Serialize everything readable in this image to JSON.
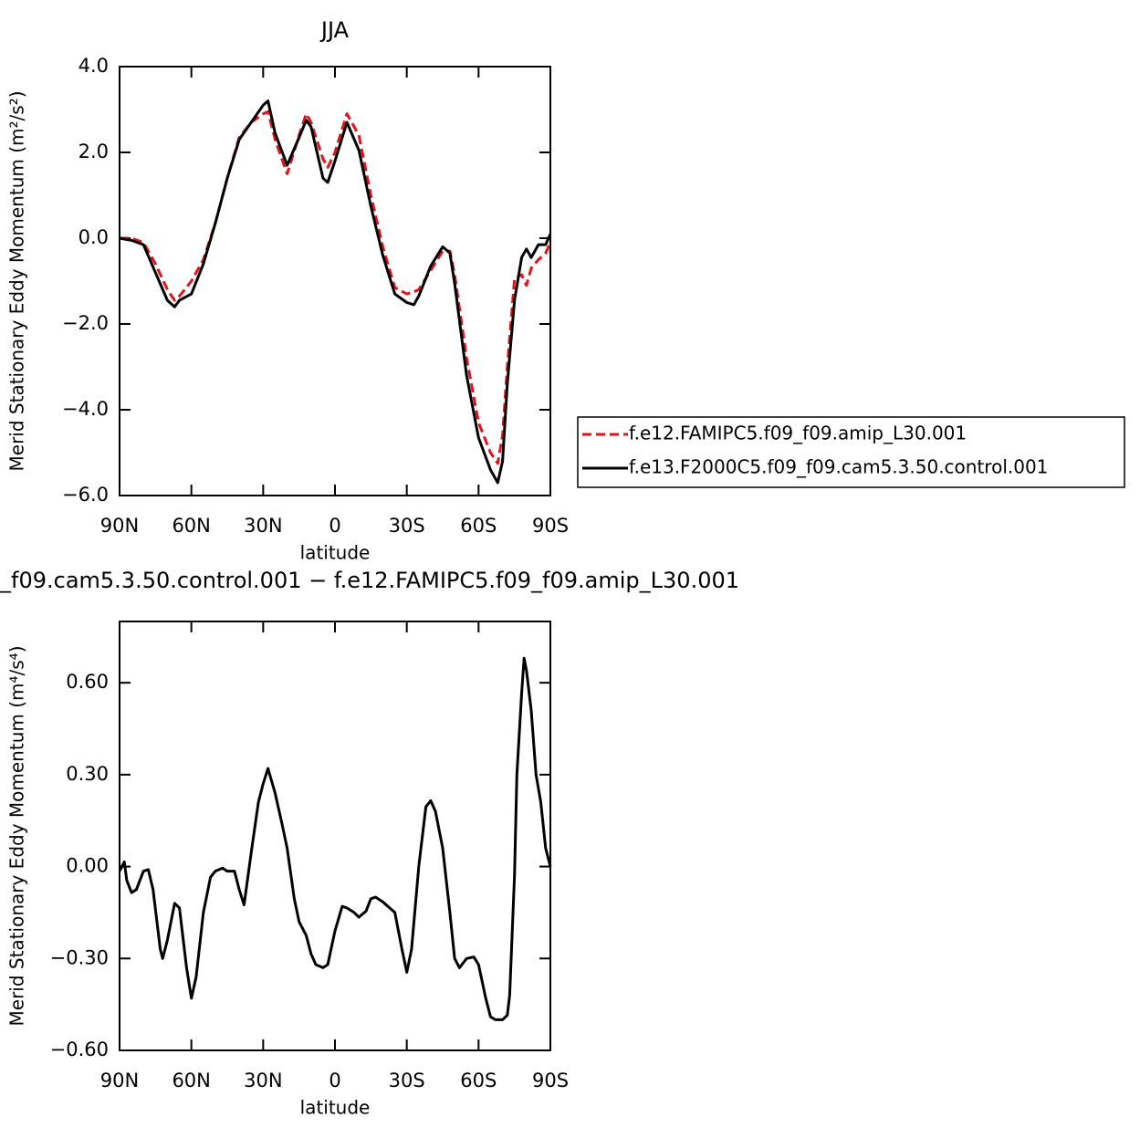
{
  "chart_data": [
    {
      "type": "line",
      "title": "JJA",
      "xlabel": "latitude",
      "ylabel": "Merid Stationary Eddy Momentum (m²/s²)",
      "x": [
        90,
        85,
        80,
        75,
        70,
        67,
        65,
        60,
        55,
        50,
        45,
        40,
        35,
        30,
        28,
        25,
        20,
        15,
        12,
        10,
        5,
        3,
        0,
        -5,
        -10,
        -15,
        -20,
        -25,
        -30,
        -33,
        -35,
        -40,
        -45,
        -48,
        -50,
        -55,
        -60,
        -65,
        -68,
        -70,
        -72,
        -75,
        -78,
        -80,
        -82,
        -85,
        -88,
        -90
      ],
      "series": [
        {
          "name": "f.e12.FAMIPC5.f09_f09.amip_L30.001",
          "color": "#e0141c",
          "style": "dashed",
          "values": [
            0,
            0,
            -0.1,
            -0.6,
            -1.2,
            -1.45,
            -1.35,
            -1.0,
            -0.5,
            0.35,
            1.4,
            2.35,
            2.7,
            2.9,
            2.95,
            2.3,
            1.5,
            2.4,
            2.9,
            2.7,
            1.85,
            1.65,
            2.0,
            2.9,
            2.4,
            1.0,
            -0.2,
            -1.15,
            -1.3,
            -1.25,
            -1.2,
            -0.75,
            -0.3,
            -0.3,
            -0.85,
            -2.8,
            -4.3,
            -5.0,
            -5.25,
            -4.6,
            -3.0,
            -0.95,
            -0.85,
            -1.1,
            -0.7,
            -0.5,
            -0.35,
            -0.1
          ]
        },
        {
          "name": "f.e13.F2000C5.f09_f09.cam5.3.50.control.001",
          "color": "#000000",
          "style": "solid",
          "values": [
            0,
            -0.05,
            -0.15,
            -0.8,
            -1.45,
            -1.6,
            -1.45,
            -1.3,
            -0.6,
            0.35,
            1.4,
            2.3,
            2.7,
            3.1,
            3.2,
            2.45,
            1.7,
            2.35,
            2.75,
            2.6,
            1.4,
            1.3,
            1.8,
            2.7,
            2.05,
            0.75,
            -0.4,
            -1.3,
            -1.5,
            -1.55,
            -1.35,
            -0.65,
            -0.2,
            -0.35,
            -1.05,
            -3.2,
            -4.65,
            -5.4,
            -5.7,
            -5.2,
            -3.4,
            -1.45,
            -0.45,
            -0.25,
            -0.45,
            -0.15,
            -0.15,
            0.1
          ]
        }
      ],
      "xlim": [
        90,
        -90
      ],
      "xticks": [
        {
          "value": 90,
          "label": "90N"
        },
        {
          "value": 60,
          "label": "60N"
        },
        {
          "value": 30,
          "label": "30N"
        },
        0,
        {
          "value": -30,
          "label": "30S"
        },
        {
          "value": -60,
          "label": "60S"
        },
        {
          "value": -90,
          "label": "90S"
        }
      ],
      "ylim": [
        -6,
        4
      ],
      "yticks": [
        {
          "value": -6,
          "label": "−6.0"
        },
        {
          "value": -4,
          "label": "−4.0"
        },
        {
          "value": -2,
          "label": "−2.0"
        },
        {
          "value": 0,
          "label": "0.0"
        },
        {
          "value": 2,
          "label": "2.0"
        },
        {
          "value": 4,
          "label": "4.0"
        }
      ],
      "legend": "outside right"
    },
    {
      "type": "line",
      "title": "_f09.cam5.3.50.control.001  −  f.e12.FAMIPC5.f09_f09.amip_L30.001",
      "xlabel": "latitude",
      "ylabel": "Merid Stationary Eddy Momentum (m⁴/s⁴)",
      "x": [
        90,
        88,
        87,
        85,
        83,
        80,
        78,
        76,
        73,
        72,
        70,
        67,
        65,
        62,
        60,
        58,
        55,
        52,
        50,
        47,
        45,
        42,
        40,
        38,
        35,
        32,
        30,
        28,
        25,
        22,
        20,
        17,
        15,
        12,
        10,
        8,
        5,
        3,
        0,
        -3,
        -5,
        -8,
        -10,
        -13,
        -15,
        -17,
        -20,
        -25,
        -28,
        -30,
        -32,
        -35,
        -38,
        -40,
        -42,
        -45,
        -48,
        -50,
        -52,
        -55,
        -58,
        -60,
        -63,
        -65,
        -67,
        -70,
        -72,
        -73,
        -75,
        -76,
        -78,
        -79,
        -80,
        -82,
        -84,
        -86,
        -88,
        -90
      ],
      "series": [
        {
          "color": "#000000",
          "style": "solid",
          "values": [
            -0.015,
            0.015,
            -0.045,
            -0.085,
            -0.075,
            -0.015,
            -0.01,
            -0.075,
            -0.27,
            -0.3,
            -0.24,
            -0.12,
            -0.135,
            -0.33,
            -0.43,
            -0.36,
            -0.15,
            -0.035,
            -0.015,
            -0.005,
            -0.015,
            -0.015,
            -0.075,
            -0.125,
            0.045,
            0.21,
            0.27,
            0.32,
            0.24,
            0.135,
            0.06,
            -0.105,
            -0.18,
            -0.225,
            -0.285,
            -0.32,
            -0.33,
            -0.32,
            -0.21,
            -0.13,
            -0.135,
            -0.15,
            -0.165,
            -0.145,
            -0.105,
            -0.1,
            -0.115,
            -0.15,
            -0.27,
            -0.345,
            -0.27,
            0,
            0.195,
            0.215,
            0.18,
            0.06,
            -0.15,
            -0.3,
            -0.33,
            -0.3,
            -0.295,
            -0.32,
            -0.43,
            -0.49,
            -0.5,
            -0.5,
            -0.485,
            -0.42,
            -0.03,
            0.3,
            0.565,
            0.68,
            0.64,
            0.51,
            0.3,
            0.21,
            0.06,
            0
          ]
        }
      ],
      "xlim": [
        90,
        -90
      ],
      "xticks": [
        {
          "value": 90,
          "label": "90N"
        },
        {
          "value": 60,
          "label": "60N"
        },
        {
          "value": 30,
          "label": "30N"
        },
        0,
        {
          "value": -30,
          "label": "30S"
        },
        {
          "value": -60,
          "label": "60S"
        },
        {
          "value": -90,
          "label": "90S"
        }
      ],
      "ylim": [
        -0.6,
        0.8
      ],
      "yticks": [
        {
          "value": -0.6,
          "label": "−0.60"
        },
        {
          "value": -0.3,
          "label": "−0.30"
        },
        {
          "value": 0,
          "label": "0.00"
        },
        {
          "value": 0.3,
          "label": "0.30"
        },
        {
          "value": 0.6,
          "label": "0.60"
        }
      ]
    }
  ]
}
